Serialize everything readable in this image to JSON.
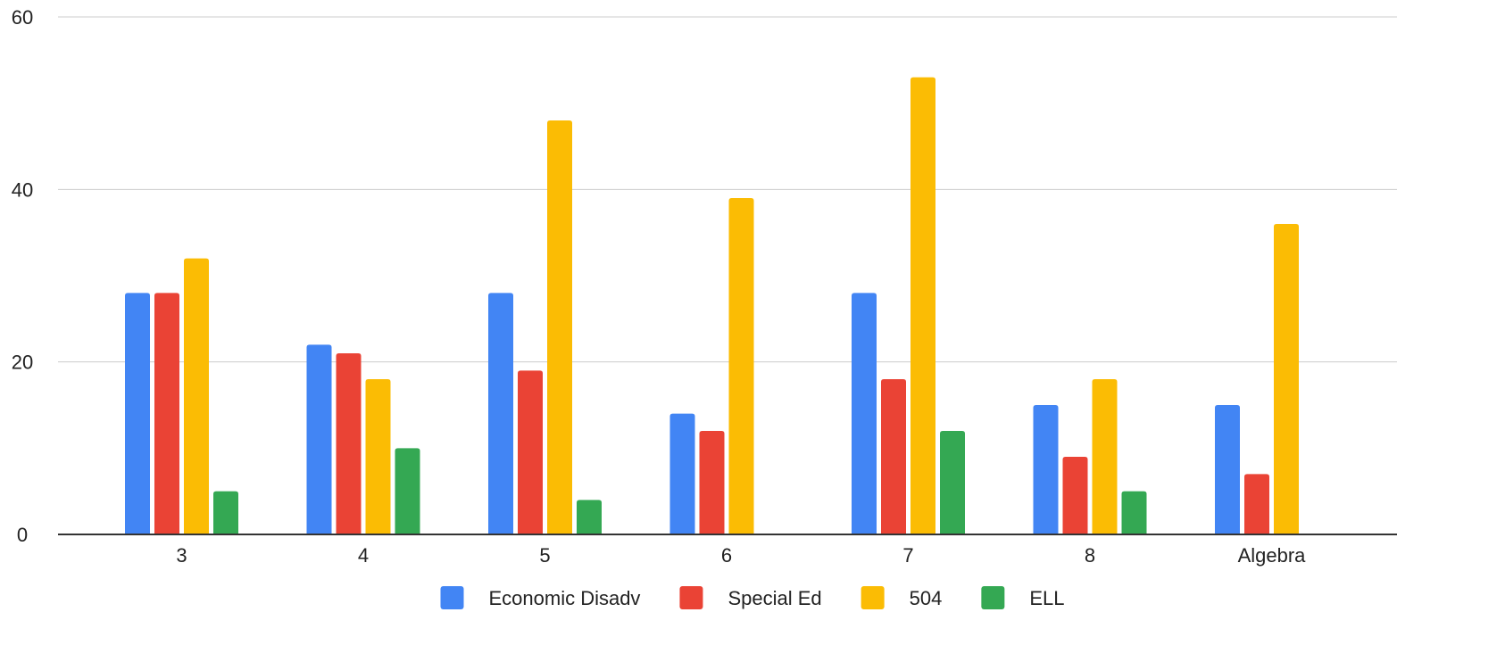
{
  "chart_data": {
    "type": "bar",
    "title": "",
    "xlabel": "",
    "ylabel": "",
    "categories": [
      "3",
      "4",
      "5",
      "6",
      "7",
      "8",
      "Algebra"
    ],
    "series": [
      {
        "name": "Economic Disadv",
        "color": "#4285f4",
        "values": [
          28,
          22,
          28,
          14,
          28,
          15,
          15
        ]
      },
      {
        "name": "Special Ed",
        "color": "#ea4335",
        "values": [
          28,
          21,
          19,
          12,
          18,
          9,
          7
        ]
      },
      {
        "name": "504",
        "color": "#fbbc04",
        "values": [
          32,
          18,
          48,
          39,
          53,
          18,
          36
        ]
      },
      {
        "name": "ELL",
        "color": "#34a853",
        "values": [
          5,
          10,
          4,
          0,
          12,
          5,
          0
        ]
      }
    ],
    "ylim": [
      0,
      60
    ],
    "yticks": [
      0,
      20,
      40,
      60
    ],
    "grid": true,
    "legend": "bottom"
  }
}
